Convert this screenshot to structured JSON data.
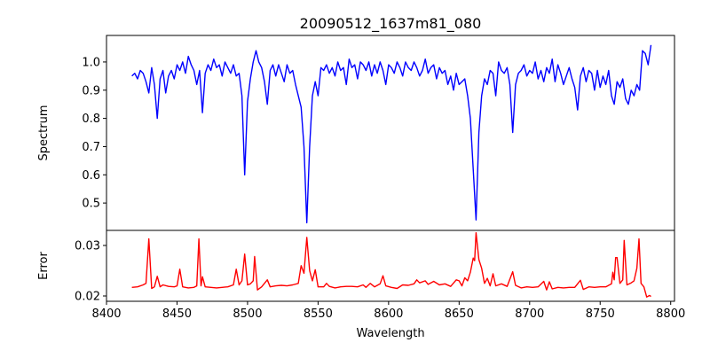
{
  "chart_data": [
    {
      "type": "line",
      "title": "20090512_1637m81_080",
      "xlabel": "",
      "ylabel": "Spectrum",
      "xlim": [
        8400,
        8802.7
      ],
      "ylim": [
        0.403,
        1.094
      ],
      "yticks": [
        0.5,
        0.6,
        0.7,
        0.8,
        0.9,
        1.0
      ],
      "ytick_labels": [
        "0.5",
        "0.6",
        "0.7",
        "0.8",
        "0.9",
        "1.0"
      ],
      "grid": false,
      "color": "#0000ff",
      "points": [
        [
          8418,
          0.95
        ],
        [
          8420,
          0.96
        ],
        [
          8422,
          0.94
        ],
        [
          8424,
          0.97
        ],
        [
          8426,
          0.96
        ],
        [
          8428,
          0.93
        ],
        [
          8430,
          0.89
        ],
        [
          8432,
          0.98
        ],
        [
          8434,
          0.92
        ],
        [
          8436,
          0.8
        ],
        [
          8438,
          0.94
        ],
        [
          8440,
          0.97
        ],
        [
          8442,
          0.89
        ],
        [
          8444,
          0.95
        ],
        [
          8446,
          0.97
        ],
        [
          8448,
          0.94
        ],
        [
          8450,
          0.99
        ],
        [
          8452,
          0.97
        ],
        [
          8454,
          1.0
        ],
        [
          8456,
          0.96
        ],
        [
          8458,
          1.02
        ],
        [
          8460,
          0.99
        ],
        [
          8462,
          0.97
        ],
        [
          8464,
          0.92
        ],
        [
          8466,
          0.97
        ],
        [
          8468,
          0.82
        ],
        [
          8470,
          0.96
        ],
        [
          8472,
          0.99
        ],
        [
          8474,
          0.97
        ],
        [
          8476,
          1.01
        ],
        [
          8478,
          0.98
        ],
        [
          8480,
          0.99
        ],
        [
          8482,
          0.95
        ],
        [
          8484,
          1.0
        ],
        [
          8486,
          0.98
        ],
        [
          8488,
          0.96
        ],
        [
          8490,
          0.99
        ],
        [
          8492,
          0.95
        ],
        [
          8494,
          0.96
        ],
        [
          8496,
          0.88
        ],
        [
          8498,
          0.6
        ],
        [
          8500,
          0.86
        ],
        [
          8502,
          0.94
        ],
        [
          8504,
          1.0
        ],
        [
          8506,
          1.04
        ],
        [
          8508,
          1.0
        ],
        [
          8510,
          0.98
        ],
        [
          8512,
          0.93
        ],
        [
          8514,
          0.85
        ],
        [
          8516,
          0.97
        ],
        [
          8518,
          0.99
        ],
        [
          8520,
          0.95
        ],
        [
          8522,
          0.99
        ],
        [
          8524,
          0.96
        ],
        [
          8526,
          0.93
        ],
        [
          8528,
          0.99
        ],
        [
          8530,
          0.96
        ],
        [
          8532,
          0.97
        ],
        [
          8534,
          0.92
        ],
        [
          8536,
          0.88
        ],
        [
          8538,
          0.84
        ],
        [
          8540,
          0.7
        ],
        [
          8542,
          0.43
        ],
        [
          8544,
          0.7
        ],
        [
          8546,
          0.88
        ],
        [
          8548,
          0.93
        ],
        [
          8550,
          0.88
        ],
        [
          8552,
          0.98
        ],
        [
          8554,
          0.97
        ],
        [
          8556,
          0.99
        ],
        [
          8558,
          0.96
        ],
        [
          8560,
          0.98
        ],
        [
          8562,
          0.95
        ],
        [
          8564,
          1.0
        ],
        [
          8566,
          0.97
        ],
        [
          8568,
          0.98
        ],
        [
          8570,
          0.92
        ],
        [
          8572,
          1.01
        ],
        [
          8574,
          0.98
        ],
        [
          8576,
          0.99
        ],
        [
          8578,
          0.94
        ],
        [
          8580,
          1.0
        ],
        [
          8582,
          0.99
        ],
        [
          8584,
          0.97
        ],
        [
          8586,
          1.0
        ],
        [
          8588,
          0.95
        ],
        [
          8590,
          0.99
        ],
        [
          8592,
          0.96
        ],
        [
          8594,
          1.0
        ],
        [
          8596,
          0.97
        ],
        [
          8598,
          0.92
        ],
        [
          8600,
          0.99
        ],
        [
          8602,
          0.98
        ],
        [
          8604,
          0.96
        ],
        [
          8606,
          1.0
        ],
        [
          8608,
          0.98
        ],
        [
          8610,
          0.95
        ],
        [
          8612,
          1.0
        ],
        [
          8614,
          0.98
        ],
        [
          8616,
          0.97
        ],
        [
          8618,
          1.0
        ],
        [
          8620,
          0.98
        ],
        [
          8622,
          0.95
        ],
        [
          8624,
          0.97
        ],
        [
          8626,
          1.01
        ],
        [
          8628,
          0.96
        ],
        [
          8630,
          0.98
        ],
        [
          8632,
          0.99
        ],
        [
          8634,
          0.94
        ],
        [
          8636,
          0.98
        ],
        [
          8638,
          0.96
        ],
        [
          8640,
          0.97
        ],
        [
          8642,
          0.92
        ],
        [
          8644,
          0.95
        ],
        [
          8646,
          0.9
        ],
        [
          8648,
          0.96
        ],
        [
          8650,
          0.92
        ],
        [
          8652,
          0.93
        ],
        [
          8654,
          0.94
        ],
        [
          8656,
          0.88
        ],
        [
          8658,
          0.8
        ],
        [
          8660,
          0.62
        ],
        [
          8662,
          0.44
        ],
        [
          8664,
          0.75
        ],
        [
          8666,
          0.88
        ],
        [
          8668,
          0.94
        ],
        [
          8670,
          0.92
        ],
        [
          8672,
          0.97
        ],
        [
          8674,
          0.96
        ],
        [
          8676,
          0.88
        ],
        [
          8678,
          1.0
        ],
        [
          8680,
          0.97
        ],
        [
          8682,
          0.96
        ],
        [
          8684,
          0.98
        ],
        [
          8686,
          0.92
        ],
        [
          8688,
          0.75
        ],
        [
          8690,
          0.92
        ],
        [
          8692,
          0.96
        ],
        [
          8694,
          0.97
        ],
        [
          8696,
          0.99
        ],
        [
          8698,
          0.95
        ],
        [
          8700,
          0.97
        ],
        [
          8702,
          0.96
        ],
        [
          8704,
          1.0
        ],
        [
          8706,
          0.94
        ],
        [
          8708,
          0.97
        ],
        [
          8710,
          0.93
        ],
        [
          8712,
          0.98
        ],
        [
          8714,
          0.96
        ],
        [
          8716,
          1.01
        ],
        [
          8718,
          0.93
        ],
        [
          8720,
          0.99
        ],
        [
          8722,
          0.96
        ],
        [
          8724,
          0.92
        ],
        [
          8726,
          0.95
        ],
        [
          8728,
          0.98
        ],
        [
          8730,
          0.94
        ],
        [
          8732,
          0.91
        ],
        [
          8734,
          0.83
        ],
        [
          8736,
          0.95
        ],
        [
          8738,
          0.98
        ],
        [
          8740,
          0.93
        ],
        [
          8742,
          0.97
        ],
        [
          8744,
          0.96
        ],
        [
          8746,
          0.9
        ],
        [
          8748,
          0.97
        ],
        [
          8750,
          0.91
        ],
        [
          8752,
          0.95
        ],
        [
          8754,
          0.92
        ],
        [
          8756,
          0.97
        ],
        [
          8758,
          0.88
        ],
        [
          8760,
          0.85
        ],
        [
          8762,
          0.93
        ],
        [
          8764,
          0.91
        ],
        [
          8766,
          0.94
        ],
        [
          8768,
          0.87
        ],
        [
          8770,
          0.85
        ],
        [
          8772,
          0.9
        ],
        [
          8774,
          0.88
        ],
        [
          8776,
          0.92
        ],
        [
          8778,
          0.9
        ],
        [
          8780,
          1.04
        ],
        [
          8782,
          1.03
        ],
        [
          8784,
          0.99
        ],
        [
          8786,
          1.06
        ]
      ]
    },
    {
      "type": "line",
      "title": "",
      "xlabel": "Wavelength",
      "ylabel": "Error",
      "xlim": [
        8400,
        8802.7
      ],
      "ylim": [
        0.01895,
        0.03298
      ],
      "xticks": [
        8400,
        8450,
        8500,
        8550,
        8600,
        8650,
        8700,
        8750,
        8800
      ],
      "xtick_labels": [
        "8400",
        "8450",
        "8500",
        "8550",
        "8600",
        "8650",
        "8700",
        "8750",
        "8800"
      ],
      "yticks": [
        0.02,
        0.03
      ],
      "ytick_labels": [
        "0.02",
        "0.03"
      ],
      "grid": false,
      "color": "#ff0000",
      "points": [
        [
          8418,
          0.0217
        ],
        [
          8422,
          0.0218
        ],
        [
          8426,
          0.0222
        ],
        [
          8428,
          0.0225
        ],
        [
          8430,
          0.0313
        ],
        [
          8432,
          0.0215
        ],
        [
          8434,
          0.0218
        ],
        [
          8436,
          0.0239
        ],
        [
          8438,
          0.0218
        ],
        [
          8440,
          0.0222
        ],
        [
          8444,
          0.0219
        ],
        [
          8448,
          0.0218
        ],
        [
          8450,
          0.022
        ],
        [
          8452,
          0.0253
        ],
        [
          8454,
          0.0218
        ],
        [
          8458,
          0.0216
        ],
        [
          8462,
          0.0217
        ],
        [
          8464,
          0.022
        ],
        [
          8465.5,
          0.0313
        ],
        [
          8467,
          0.022
        ],
        [
          8468,
          0.0238
        ],
        [
          8470,
          0.0218
        ],
        [
          8474,
          0.0217
        ],
        [
          8478,
          0.0216
        ],
        [
          8482,
          0.0217
        ],
        [
          8486,
          0.0218
        ],
        [
          8490,
          0.0222
        ],
        [
          8492,
          0.0253
        ],
        [
          8494,
          0.0222
        ],
        [
          8496,
          0.023
        ],
        [
          8498,
          0.0283
        ],
        [
          8500,
          0.0222
        ],
        [
          8502,
          0.0224
        ],
        [
          8504,
          0.023
        ],
        [
          8505,
          0.0278
        ],
        [
          8507,
          0.0212
        ],
        [
          8510,
          0.0218
        ],
        [
          8514,
          0.0232
        ],
        [
          8516,
          0.0218
        ],
        [
          8520,
          0.022
        ],
        [
          8524,
          0.0221
        ],
        [
          8528,
          0.022
        ],
        [
          8532,
          0.0222
        ],
        [
          8536,
          0.0225
        ],
        [
          8538,
          0.026
        ],
        [
          8540,
          0.0245
        ],
        [
          8542,
          0.0316
        ],
        [
          8544,
          0.025
        ],
        [
          8546,
          0.023
        ],
        [
          8548,
          0.0252
        ],
        [
          8550,
          0.0218
        ],
        [
          8554,
          0.0218
        ],
        [
          8556,
          0.0225
        ],
        [
          8558,
          0.0219
        ],
        [
          8562,
          0.0216
        ],
        [
          8566,
          0.0218
        ],
        [
          8570,
          0.0219
        ],
        [
          8574,
          0.0219
        ],
        [
          8578,
          0.0218
        ],
        [
          8582,
          0.0222
        ],
        [
          8584,
          0.0217
        ],
        [
          8587,
          0.0225
        ],
        [
          8590,
          0.0218
        ],
        [
          8594,
          0.0224
        ],
        [
          8596,
          0.024
        ],
        [
          8598,
          0.022
        ],
        [
          8602,
          0.0217
        ],
        [
          8606,
          0.0215
        ],
        [
          8610,
          0.0222
        ],
        [
          8614,
          0.0221
        ],
        [
          8618,
          0.0224
        ],
        [
          8620,
          0.0232
        ],
        [
          8622,
          0.0226
        ],
        [
          8626,
          0.023
        ],
        [
          8628,
          0.0223
        ],
        [
          8632,
          0.0229
        ],
        [
          8636,
          0.0222
        ],
        [
          8640,
          0.0224
        ],
        [
          8644,
          0.0219
        ],
        [
          8648,
          0.0232
        ],
        [
          8650,
          0.023
        ],
        [
          8652,
          0.022
        ],
        [
          8654,
          0.0236
        ],
        [
          8656,
          0.023
        ],
        [
          8658,
          0.0247
        ],
        [
          8660,
          0.0275
        ],
        [
          8661,
          0.027
        ],
        [
          8662,
          0.0325
        ],
        [
          8664,
          0.0272
        ],
        [
          8666,
          0.0255
        ],
        [
          8668,
          0.0225
        ],
        [
          8670,
          0.0235
        ],
        [
          8672,
          0.022
        ],
        [
          8674,
          0.0244
        ],
        [
          8676,
          0.022
        ],
        [
          8680,
          0.0224
        ],
        [
          8684,
          0.0219
        ],
        [
          8688,
          0.0248
        ],
        [
          8690,
          0.0221
        ],
        [
          8694,
          0.0216
        ],
        [
          8698,
          0.0218
        ],
        [
          8702,
          0.0217
        ],
        [
          8706,
          0.0218
        ],
        [
          8710,
          0.0229
        ],
        [
          8712,
          0.0212
        ],
        [
          8714,
          0.0228
        ],
        [
          8716,
          0.0214
        ],
        [
          8720,
          0.0217
        ],
        [
          8724,
          0.0216
        ],
        [
          8728,
          0.0217
        ],
        [
          8732,
          0.0217
        ],
        [
          8736,
          0.0231
        ],
        [
          8738,
          0.0213
        ],
        [
          8742,
          0.0218
        ],
        [
          8746,
          0.0217
        ],
        [
          8750,
          0.0218
        ],
        [
          8754,
          0.0218
        ],
        [
          8758,
          0.0224
        ],
        [
          8759,
          0.0247
        ],
        [
          8760,
          0.0232
        ],
        [
          8761,
          0.0276
        ],
        [
          8762,
          0.0276
        ],
        [
          8764,
          0.0225
        ],
        [
          8766,
          0.0232
        ],
        [
          8767,
          0.031
        ],
        [
          8769,
          0.0222
        ],
        [
          8772,
          0.0226
        ],
        [
          8774,
          0.023
        ],
        [
          8776,
          0.0255
        ],
        [
          8777.5,
          0.0313
        ],
        [
          8779,
          0.0225
        ],
        [
          8781,
          0.0218
        ],
        [
          8783,
          0.0198
        ],
        [
          8785,
          0.0201
        ],
        [
          8786,
          0.0199
        ]
      ]
    }
  ]
}
